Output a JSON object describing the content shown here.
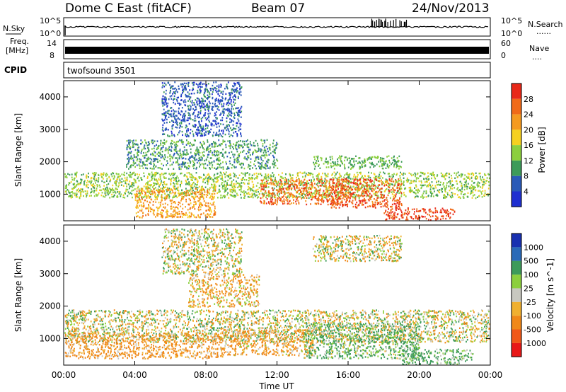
{
  "header": {
    "radar": "Dome C East (fitACF)",
    "beam": "Beam 07",
    "date": "24/Nov/2013"
  },
  "nsky_panel": {
    "left_label": "N.Sky",
    "right_label": "N.Search",
    "left_ticks": [
      "10^5",
      "10^0"
    ],
    "right_ticks": [
      "10^5",
      "10^0"
    ],
    "right_dots": "......"
  },
  "freq_panel": {
    "left_label_line1": "Freq.",
    "left_label_line2": "[MHz]",
    "right_label": "Nave",
    "left_ticks": [
      "14",
      "8"
    ],
    "right_ticks": [
      "60",
      "0"
    ],
    "right_dots": "...."
  },
  "cpid_panel": {
    "left_label": "CPID",
    "program": "twofsound 3501"
  },
  "x_axis": {
    "label": "Time UT",
    "ticks": [
      "00:00",
      "04:00",
      "08:00",
      "12:00",
      "16:00",
      "20:00",
      "00:00"
    ]
  },
  "colors": {
    "power": [
      "#1f2fd0",
      "#2a5ab8",
      "#3d9b5a",
      "#8ccf3e",
      "#f5d020",
      "#f59a20",
      "#f06a18",
      "#e82818"
    ],
    "velocity": [
      "#e81818",
      "#f04818",
      "#f07818",
      "#f0a030",
      "#c8c8c0",
      "#d8d8d0",
      "#8ccf3e",
      "#3d9b5a",
      "#2a6ab8",
      "#1830b0"
    ],
    "ground_scatter": "#a0a0a0"
  },
  "chart_data": [
    {
      "type": "heatmap",
      "title": "Power",
      "ylabel": "Slant Range [km]",
      "xlabel": "",
      "colorbar_label": "Power [dB]",
      "colorbar_ticks": [
        "28",
        "24",
        "20",
        "16",
        "12",
        "8",
        "4"
      ],
      "xlim": [
        0,
        24
      ],
      "ylim": [
        180,
        4500
      ],
      "y_ticks": [
        "1000",
        "2000",
        "3000",
        "4000"
      ],
      "clim": [
        0,
        32
      ],
      "regions": [
        {
          "t0": 0,
          "t1": 24,
          "r0": 900,
          "r1": 1700,
          "value": 14
        },
        {
          "t0": 3.5,
          "t1": 12,
          "r0": 1800,
          "r1": 2700,
          "value": 10
        },
        {
          "t0": 5.5,
          "t1": 10,
          "r0": 2800,
          "r1": 4500,
          "value": 6
        },
        {
          "t0": 4,
          "t1": 8.5,
          "r0": 300,
          "r1": 1200,
          "value": 22
        },
        {
          "t0": 11,
          "t1": 16,
          "r0": 700,
          "r1": 1500,
          "value": 26
        },
        {
          "t0": 15,
          "t1": 19,
          "r0": 600,
          "r1": 1500,
          "value": 27
        },
        {
          "t0": 18,
          "t1": 22,
          "r0": 200,
          "r1": 600,
          "value": 29
        },
        {
          "t0": 14,
          "t1": 19,
          "r0": 1800,
          "r1": 2200,
          "value": 12
        }
      ]
    },
    {
      "type": "heatmap",
      "title": "Velocity",
      "ylabel": "Slant Range [km]",
      "xlabel": "Time UT",
      "colorbar_label": "Velocity [m s^-1]",
      "colorbar_ticks": [
        "1000",
        "500",
        "100",
        "25",
        "-25",
        "-100",
        "-500",
        "-1000"
      ],
      "xlim": [
        0,
        24
      ],
      "ylim": [
        180,
        4500
      ],
      "y_ticks": [
        "1000",
        "2000",
        "3000",
        "4000"
      ],
      "clim": [
        -1000,
        1000
      ],
      "regions": [
        {
          "t0": 0,
          "t1": 24,
          "r0": 900,
          "r1": 1900,
          "value": 0
        },
        {
          "t0": 0,
          "t1": 9,
          "r0": 400,
          "r1": 1200,
          "value": -150
        },
        {
          "t0": 9,
          "t1": 14,
          "r0": 500,
          "r1": 1300,
          "value": -120
        },
        {
          "t0": 13.5,
          "t1": 20,
          "r0": 400,
          "r1": 1500,
          "value": 120
        },
        {
          "t0": 19,
          "t1": 23,
          "r0": 200,
          "r1": 700,
          "value": 150
        },
        {
          "t0": 7,
          "t1": 11,
          "r0": 2000,
          "r1": 3000,
          "value": -100
        },
        {
          "t0": 5.5,
          "t1": 10,
          "r0": 3000,
          "r1": 4400,
          "value": 0
        },
        {
          "t0": 14,
          "t1": 19,
          "r0": 3400,
          "r1": 4200,
          "value": 0
        }
      ]
    }
  ]
}
